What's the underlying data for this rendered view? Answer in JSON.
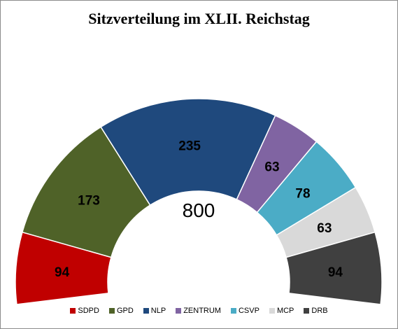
{
  "chart_data": {
    "type": "pie",
    "subtype": "semicircle-parliament",
    "title": "Sitzverteilung im XLII. Reichstag",
    "total": 800,
    "total_label": "800",
    "legend_position": "bottom",
    "series": [
      {
        "name": "SDPD",
        "value": 94,
        "label": "94",
        "color": "#c00000",
        "label_color": "#000000"
      },
      {
        "name": "GPD",
        "value": 173,
        "label": "173",
        "color": "#4f6228",
        "label_color": "#000000"
      },
      {
        "name": "NLP",
        "value": 235,
        "label": "235",
        "color": "#1f497d",
        "label_color": "#000000"
      },
      {
        "name": "ZENTRUM",
        "value": 63,
        "label": "63",
        "color": "#8064a2",
        "label_color": "#000000"
      },
      {
        "name": "CSVP",
        "value": 78,
        "label": "78",
        "color": "#4bacc6",
        "label_color": "#000000"
      },
      {
        "name": "MCP",
        "value": 63,
        "label": "63",
        "color": "#d9d9d9",
        "label_color": "#000000"
      },
      {
        "name": "DRB",
        "value": 94,
        "label": "94",
        "color": "#404040",
        "label_color": "#000000"
      }
    ]
  }
}
